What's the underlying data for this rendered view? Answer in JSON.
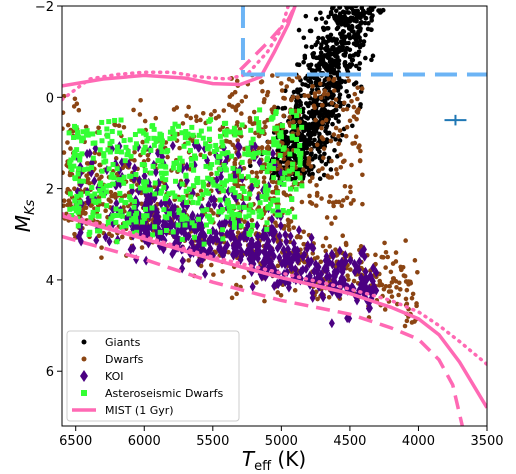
{
  "chart_data": {
    "type": "scatter",
    "xlabel_main": "T",
    "xlabel_sub": "eff",
    "xlabel_unit": " (K)",
    "ylabel_main": "M",
    "ylabel_sub": "Ks",
    "xlim": [
      6600,
      3500
    ],
    "ylim": [
      7.2,
      -2.0
    ],
    "x_ticks": [
      {
        "value": 6500,
        "label": "6500"
      },
      {
        "value": 6000,
        "label": "6000"
      },
      {
        "value": 5500,
        "label": "5500"
      },
      {
        "value": 5000,
        "label": "5000"
      },
      {
        "value": 4500,
        "label": "4500"
      },
      {
        "value": 4000,
        "label": "4000"
      },
      {
        "value": 3500,
        "label": "3500"
      }
    ],
    "y_ticks": [
      {
        "value": -2,
        "label": "−2"
      },
      {
        "value": 0,
        "label": "0"
      },
      {
        "value": 2,
        "label": "2"
      },
      {
        "value": 4,
        "label": "4"
      },
      {
        "value": 6,
        "label": "6"
      }
    ],
    "legend": {
      "placement": "lower-left",
      "entries": [
        {
          "label": "Giants",
          "marker": "circle",
          "color": "#000000"
        },
        {
          "label": "Dwarfs",
          "marker": "circle",
          "color": "#8B4513"
        },
        {
          "label": "KOI",
          "marker": "diamond",
          "color": "#4B0082"
        },
        {
          "label": "Asteroseismic Dwarfs",
          "marker": "square",
          "color": "#33FF33"
        },
        {
          "label": "MIST (1 Gyr)",
          "marker": "line",
          "color": "#FF69B4"
        }
      ]
    },
    "colors": {
      "giants": "#000000",
      "dwarfs": "#8B4513",
      "koi": "#4B0082",
      "astero": "#33FF33",
      "mist": "#FF69B4",
      "cut": "#6CB4F5",
      "errorbar": "#1F77B4"
    },
    "mist_solid": [
      [
        6600,
        -0.25
      ],
      [
        6300,
        -0.4
      ],
      [
        6000,
        -0.48
      ],
      [
        5700,
        -0.42
      ],
      [
        5500,
        -0.3
      ],
      [
        5300,
        -0.28
      ],
      [
        5150,
        -0.45
      ],
      [
        5050,
        -1.0
      ],
      [
        4950,
        -1.6
      ],
      [
        4900,
        -2.0
      ]
    ],
    "mist_dotted": [
      [
        6600,
        0.05
      ],
      [
        6400,
        -0.4
      ],
      [
        6200,
        -0.5
      ],
      [
        6000,
        -0.55
      ],
      [
        5800,
        -0.55
      ],
      [
        5600,
        -0.45
      ],
      [
        5400,
        -0.4
      ],
      [
        5250,
        -0.5
      ],
      [
        5100,
        -1.0
      ],
      [
        5000,
        -1.5
      ],
      [
        4950,
        -2.0
      ]
    ],
    "mist_dashed_upper": [
      [
        5300,
        -0.6
      ],
      [
        5100,
        -1.2
      ],
      [
        4950,
        -1.7
      ],
      [
        4900,
        -2.0
      ]
    ],
    "mist_ms_solid": [
      [
        6600,
        2.6
      ],
      [
        6000,
        3.1
      ],
      [
        5500,
        3.55
      ],
      [
        5000,
        3.95
      ],
      [
        4500,
        4.3
      ],
      [
        4200,
        4.6
      ],
      [
        4000,
        4.85
      ],
      [
        3850,
        5.2
      ],
      [
        3700,
        5.8
      ],
      [
        3600,
        6.3
      ],
      [
        3500,
        6.8
      ]
    ],
    "mist_ms_dashed": [
      [
        6600,
        3.05
      ],
      [
        6000,
        3.55
      ],
      [
        5500,
        4.05
      ],
      [
        5000,
        4.45
      ],
      [
        4500,
        4.75
      ],
      [
        4200,
        5.05
      ],
      [
        4000,
        5.3
      ],
      [
        3850,
        5.75
      ],
      [
        3750,
        6.3
      ],
      [
        3680,
        7.2
      ]
    ],
    "mist_ms_dotted": [
      [
        6600,
        2.55
      ],
      [
        6000,
        3.05
      ],
      [
        5500,
        3.5
      ],
      [
        5000,
        3.85
      ],
      [
        4500,
        4.2
      ],
      [
        4200,
        4.45
      ],
      [
        4000,
        4.7
      ],
      [
        3850,
        5.0
      ],
      [
        3700,
        5.35
      ],
      [
        3500,
        5.85
      ]
    ],
    "cut_vertical": [
      [
        5280,
        -2.0
      ],
      [
        5280,
        -0.5
      ]
    ],
    "cut_horizontal": [
      [
        5280,
        -0.5
      ],
      [
        3500,
        -0.5
      ]
    ],
    "error_bar": {
      "x": 3730,
      "y": 0.5,
      "x_err": 80,
      "y_err": 0.05
    },
    "giants_region": {
      "note": "dense black points along the red giant branch, Teff 4300–5300 K, M_Ks −2 to 2"
    },
    "dwarfs_region": {
      "note": "brown points spanning main sequence and subgiants, Teff 3700–6600 K, M_Ks −0.5 to 5.5"
    },
    "koi_region": {
      "note": "purple diamonds concentrated along main sequence, Teff 4000–6500 K, M_Ks 1 to 5"
    },
    "astero_region": {
      "note": "green squares for subgiants/F dwarfs, Teff 4800–6500 K, M_Ks 0.5 to 3"
    }
  }
}
